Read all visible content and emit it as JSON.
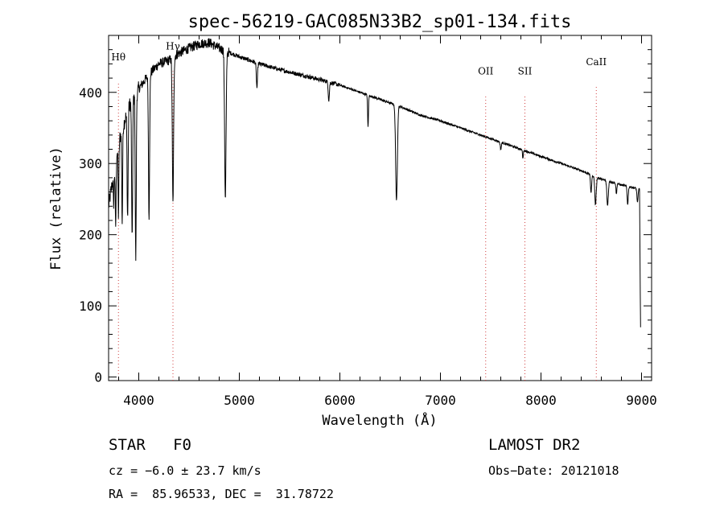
{
  "chart_data": {
    "type": "line",
    "title": "spec-56219-GAC085N33B2_sp01-134.fits",
    "xlabel": "Wavelength (Å)",
    "ylabel": "Flux (relative)",
    "xlim": [
      3700,
      9100
    ],
    "ylim": [
      -5,
      480
    ],
    "xticks": [
      4000,
      5000,
      6000,
      7000,
      8000,
      9000
    ],
    "yticks": [
      0,
      100,
      200,
      300,
      400
    ],
    "grid": false,
    "continuum": {
      "x": [
        3700,
        3800,
        3900,
        4000,
        4100,
        4200,
        4300,
        4400,
        4500,
        4600,
        4700,
        4800,
        5000,
        5200,
        5400,
        5600,
        5800,
        6000,
        6200,
        6400,
        6600,
        6800,
        7000,
        7200,
        7400,
        7600,
        7800,
        8000,
        8200,
        8400,
        8600,
        8800,
        8950
      ],
      "y": [
        240,
        330,
        380,
        405,
        425,
        440,
        445,
        455,
        462,
        468,
        470,
        462,
        450,
        440,
        432,
        425,
        418,
        410,
        400,
        390,
        380,
        368,
        360,
        350,
        340,
        330,
        320,
        310,
        300,
        290,
        278,
        270,
        265
      ]
    },
    "absorption_lines": [
      {
        "x": 3750,
        "depth": 40,
        "width": 6
      },
      {
        "x": 3770,
        "depth": 90,
        "width": 6
      },
      {
        "x": 3798,
        "depth": 100,
        "width": 6
      },
      {
        "x": 3835,
        "depth": 130,
        "width": 6
      },
      {
        "x": 3889,
        "depth": 150,
        "width": 7
      },
      {
        "x": 3934,
        "depth": 200,
        "width": 7
      },
      {
        "x": 3970,
        "depth": 230,
        "width": 7
      },
      {
        "x": 4102,
        "depth": 200,
        "width": 8
      },
      {
        "x": 4340,
        "depth": 205,
        "width": 9
      },
      {
        "x": 4861,
        "depth": 210,
        "width": 10
      },
      {
        "x": 5175,
        "depth": 35,
        "width": 8
      },
      {
        "x": 5890,
        "depth": 25,
        "width": 8
      },
      {
        "x": 6280,
        "depth": 45,
        "width": 6
      },
      {
        "x": 6563,
        "depth": 135,
        "width": 12
      },
      {
        "x": 7600,
        "depth": 10,
        "width": 8
      },
      {
        "x": 7820,
        "depth": 12,
        "width": 6
      },
      {
        "x": 8498,
        "depth": 25,
        "width": 8
      },
      {
        "x": 8542,
        "depth": 40,
        "width": 10
      },
      {
        "x": 8662,
        "depth": 35,
        "width": 10
      },
      {
        "x": 8750,
        "depth": 15,
        "width": 6
      },
      {
        "x": 8862,
        "depth": 25,
        "width": 8
      },
      {
        "x": 8960,
        "depth": 20,
        "width": 8
      }
    ],
    "end_drop": {
      "x": 8990,
      "y": 70
    },
    "line_markers": [
      {
        "label": "Hθ",
        "x": 3798,
        "y": 445
      },
      {
        "label": "Hγ",
        "x": 4340,
        "y": 460
      },
      {
        "label": "OII",
        "x": 7450,
        "y": 425
      },
      {
        "label": "SII",
        "x": 7840,
        "y": 425
      },
      {
        "label": "CaII",
        "x": 8550,
        "y": 438
      }
    ]
  },
  "info": {
    "object_class": "STAR",
    "subclass": "F0",
    "survey": "LAMOST DR2",
    "redshift": "cz = −6.0 ± 23.7 km/s",
    "obs_date": "Obs−Date: 20121018",
    "coords": "RA =  85.96533, DEC =  31.78722"
  }
}
